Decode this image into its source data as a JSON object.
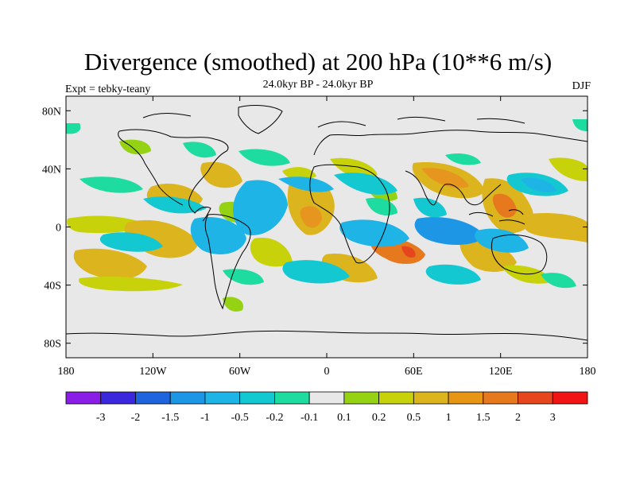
{
  "title": "Divergence (smoothed) at 200 hPa (10**6 m/s)",
  "subtitle": "24.0kyr BP - 24.0kyr BP",
  "experiment_label": "Expt = tebky-teany",
  "season_label": "DJF",
  "colors": {
    "ocean_bg": "#e8e8e8",
    "coast": "#000000",
    "bins": [
      "#8a1ee6",
      "#3c28dc",
      "#1e64dc",
      "#1e96e6",
      "#1eb4e6",
      "#14c8d2",
      "#1edca0",
      "#e8e8e8",
      "#96d214",
      "#c8d20a",
      "#dcb41e",
      "#e69614",
      "#e6781e",
      "#e6461e",
      "#f01414"
    ]
  },
  "chart_data": {
    "type": "filled-contour-map",
    "title": "Divergence (smoothed) at 200 hPa (10**6 m/s)",
    "subtitle": "24.0kyr BP - 24.0kyr BP",
    "variable": "Divergence (smoothed) at 200 hPa",
    "units": "10**6 m/s",
    "season": "DJF",
    "experiment": "tebky-teany",
    "x_ticks": [
      "180",
      "120W",
      "60W",
      "0",
      "60E",
      "120E",
      "180"
    ],
    "y_ticks": [
      "80N",
      "40N",
      "0",
      "40S",
      "80S"
    ],
    "lon_range": [
      -180,
      180
    ],
    "lat_range": [
      -90,
      90
    ],
    "colorbar_levels": [
      "-3",
      "-2",
      "-1.5",
      "-1",
      "-0.5",
      "-0.2",
      "-0.1",
      "0.1",
      "0.2",
      "0.5",
      "1",
      "1.5",
      "2",
      "3"
    ],
    "notes": "Alternating positive/negative divergence bands across tropics and subtropics; strongest positive near Maritime Continent and Indian Ocean; high latitudes near zero."
  }
}
